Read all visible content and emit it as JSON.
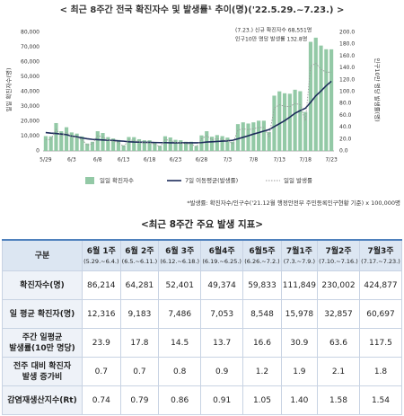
{
  "chart_data": {
    "type": "combo",
    "title": "< 최근 8주간 전국 확진자수 및 발생률¹ 추이(명)('22.5.29.~7.23.) >",
    "y_label": "일일 확진자수(명)",
    "y2_label": "인구10만 명당 발생률(명)",
    "annotations": [
      "(7.23.) 신규 확진자수 68,551명",
      "인구10만 명당 발생률 132.8명"
    ],
    "footnote": "*발생률: 확진자수/인구수('21.12월 행정안전부 주민등록인구현황 기준) x 100,000명",
    "categories": [
      "5/29",
      null,
      null,
      null,
      null,
      "6/3",
      null,
      null,
      null,
      null,
      "6/8",
      null,
      null,
      null,
      null,
      "6/13",
      null,
      null,
      null,
      null,
      "6/18",
      null,
      null,
      null,
      null,
      "6/23",
      null,
      null,
      null,
      null,
      "6/28",
      null,
      null,
      null,
      null,
      "7/3",
      null,
      null,
      null,
      null,
      "7/8",
      null,
      null,
      null,
      null,
      "7/13",
      null,
      null,
      null,
      null,
      "7/18",
      null,
      null,
      null,
      null,
      "7/23"
    ],
    "ylim": [
      0,
      80000
    ],
    "yticks": [
      0,
      {
        "value": 10000,
        "label": "10,000"
      },
      {
        "value": 20000,
        "label": "20,000"
      },
      {
        "value": 30000,
        "label": "30,000"
      },
      {
        "value": 40000,
        "label": "40,000"
      },
      {
        "value": 50000,
        "label": "50,000"
      },
      {
        "value": 60000,
        "label": "60,000"
      },
      {
        "value": 70000,
        "label": "70,000"
      },
      {
        "value": 80000,
        "label": "80,000"
      }
    ],
    "y2lim": [
      0,
      200
    ],
    "y2ticks": [
      {
        "value": 0,
        "label": "0.0"
      },
      {
        "value": 20,
        "label": "20.0"
      },
      {
        "value": 40,
        "label": "40.0"
      },
      {
        "value": 60,
        "label": "60.0"
      },
      {
        "value": 80,
        "label": "80.0"
      },
      {
        "value": 100,
        "label": "100.0"
      },
      {
        "value": 120,
        "label": "120.0"
      },
      {
        "value": 140,
        "label": "140.0"
      },
      {
        "value": 160,
        "label": "160.0"
      },
      {
        "value": 180,
        "label": "180.0"
      },
      {
        "value": 200,
        "label": "200.0"
      }
    ],
    "grid": false,
    "legend": "bottom",
    "series": [
      {
        "name": "일일 확진자수",
        "type": "bar",
        "color": "#93c9a6",
        "values": [
          10000,
          9800,
          18800,
          13300,
          16000,
          12500,
          11700,
          9800,
          5000,
          6200,
          13300,
          12100,
          9300,
          8400,
          7400,
          3800,
          9400,
          9300,
          7900,
          7200,
          7200,
          6000,
          3500,
          9900,
          9100,
          7500,
          7200,
          6200,
          6200,
          3400,
          10500,
          13300,
          9600,
          10700,
          10000,
          9000,
          6200,
          18100,
          19300,
          18500,
          19300,
          20400,
          20400,
          12700,
          37300,
          40200,
          38900,
          38600,
          41300,
          40300,
          26300,
          73600,
          76400,
          71100,
          68600,
          68551
        ]
      },
      {
        "name": "7일 이동평균(발생률)",
        "type": "line",
        "axis": "y2",
        "color": "#1c2b5a",
        "style": "solid",
        "values": [
          31.0,
          30.0,
          29.5,
          28.5,
          27.5,
          25.0,
          23.9,
          22.0,
          20.5,
          19.5,
          19.0,
          18.5,
          18.0,
          17.8,
          17.0,
          16.5,
          15.5,
          15.0,
          14.8,
          14.5,
          14.5,
          14.2,
          14.0,
          14.0,
          13.8,
          13.8,
          13.7,
          13.7,
          13.7,
          13.7,
          14.0,
          15.0,
          15.5,
          16.0,
          16.6,
          17.0,
          18.0,
          20.5,
          23.0,
          25.5,
          28.5,
          30.9,
          33.5,
          36.0,
          41.0,
          46.0,
          51.0,
          57.0,
          63.6,
          68.0,
          72.0,
          82.0,
          93.0,
          101.0,
          110.0,
          117.5
        ]
      },
      {
        "name": "일일 발생률",
        "type": "line",
        "axis": "y2",
        "color": "#9a9a9a",
        "style": "dotted",
        "values": [
          19.4,
          19.0,
          36.4,
          25.8,
          31.0,
          24.2,
          22.7,
          19.0,
          9.7,
          12.0,
          25.8,
          23.4,
          18.0,
          16.3,
          14.3,
          7.4,
          18.2,
          18.0,
          15.3,
          13.9,
          13.9,
          11.6,
          6.8,
          19.2,
          17.6,
          14.5,
          13.9,
          12.0,
          12.0,
          6.6,
          20.3,
          25.8,
          18.6,
          20.7,
          19.4,
          17.4,
          12.0,
          35.1,
          37.4,
          35.8,
          37.4,
          39.5,
          39.5,
          24.6,
          72.3,
          77.9,
          75.3,
          74.8,
          80.0,
          78.1,
          50.9,
          142.6,
          148.0,
          137.7,
          132.9,
          132.8
        ]
      }
    ]
  },
  "table": {
    "title": "<최근 8주간 주요 발생 지표>",
    "header": [
      "구분",
      "6월 1주",
      "6월 2주",
      "6월 3주",
      "6월4주",
      "6월5주",
      "7월1주",
      "7월2주",
      "7월3주"
    ],
    "periods": [
      "(5.29.~6.4.)",
      "(6.5.~6.11.)",
      "(6.12.~6.18.)",
      "(6.19.~6.25.)",
      "(6.26.~7.2.)",
      "(7.3.~7.9.)",
      "(7.10.~7.16.)",
      "(7.17.~7.23.)"
    ],
    "rows": [
      [
        "확진자수(명)",
        "86,214",
        "64,281",
        "52,401",
        "49,374",
        "59,833",
        "111,849",
        "230,002",
        "424,877"
      ],
      [
        "일 평균 확진자(명)",
        "12,316",
        "9,183",
        "7,486",
        "7,053",
        "8,548",
        "15,978",
        "32,857",
        "60,697"
      ],
      [
        "주간 일평균\n발생률(10만 명당)",
        "23.9",
        "17.8",
        "14.5",
        "13.7",
        "16.6",
        "30.9",
        "63.6",
        "117.5"
      ],
      [
        "전주 대비 확진자\n발생 증가비",
        "0.7",
        "0.7",
        "0.8",
        "0.9",
        "1.2",
        "1.9",
        "2.1",
        "1.8"
      ],
      [
        "감염재생산지수(Rt)",
        "0.74",
        "0.79",
        "0.86",
        "0.91",
        "1.05",
        "1.40",
        "1.58",
        "1.54"
      ]
    ]
  }
}
